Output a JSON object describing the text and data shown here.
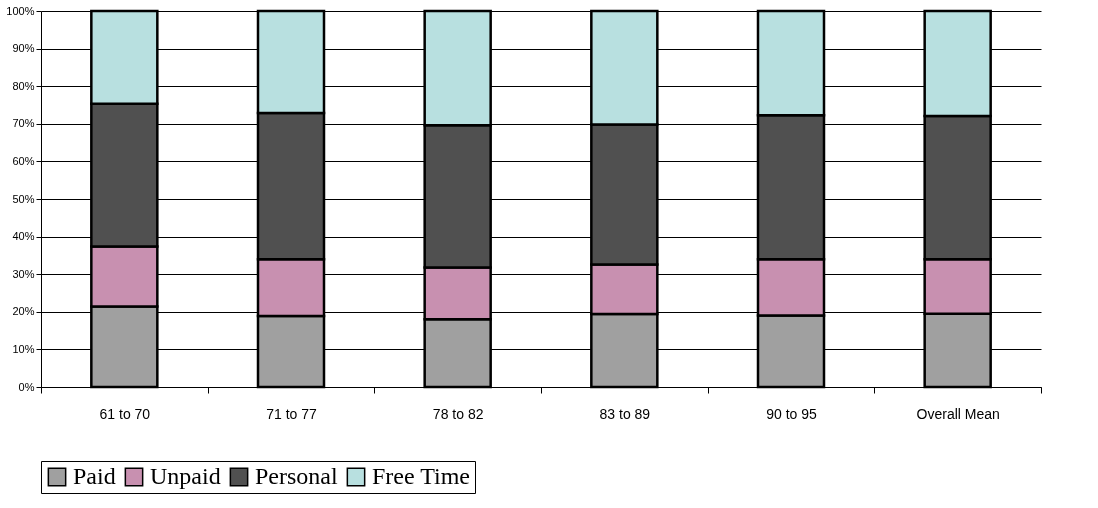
{
  "chart_data": {
    "type": "bar",
    "stacked": true,
    "categories": [
      "61 to 70",
      "71 to 77",
      "78 to 82",
      "83 to 89",
      "90 to 95",
      "Overall Mean"
    ],
    "series": [
      {
        "name": "Paid",
        "color": "#a0a0a0",
        "values": [
          21.4,
          18.9,
          18.0,
          19.4,
          19.0,
          19.5
        ]
      },
      {
        "name": "Unpaid",
        "color": "#c890b0",
        "values": [
          16.0,
          15.1,
          13.8,
          13.2,
          15.0,
          14.5
        ]
      },
      {
        "name": "Personal",
        "color": "#505050",
        "values": [
          37.9,
          38.9,
          37.8,
          37.2,
          38.3,
          38.1
        ]
      },
      {
        "name": "Free Time",
        "color": "#b8e0e0",
        "values": [
          24.7,
          27.1,
          30.4,
          30.2,
          27.7,
          27.9
        ]
      }
    ],
    "ylim": [
      0,
      100
    ],
    "yticks": [
      {
        "value": 0,
        "label": "0%"
      },
      {
        "value": 10,
        "label": "10%"
      },
      {
        "value": 20,
        "label": "20%"
      },
      {
        "value": 30,
        "label": "30%"
      },
      {
        "value": 40,
        "label": "40%"
      },
      {
        "value": 50,
        "label": "50%"
      },
      {
        "value": 60,
        "label": "60%"
      },
      {
        "value": 70,
        "label": "70%"
      },
      {
        "value": 80,
        "label": "80%"
      },
      {
        "value": 90,
        "label": "90%"
      },
      {
        "value": 100,
        "label": "100%"
      }
    ],
    "grid": "y",
    "legend": "bottom"
  }
}
